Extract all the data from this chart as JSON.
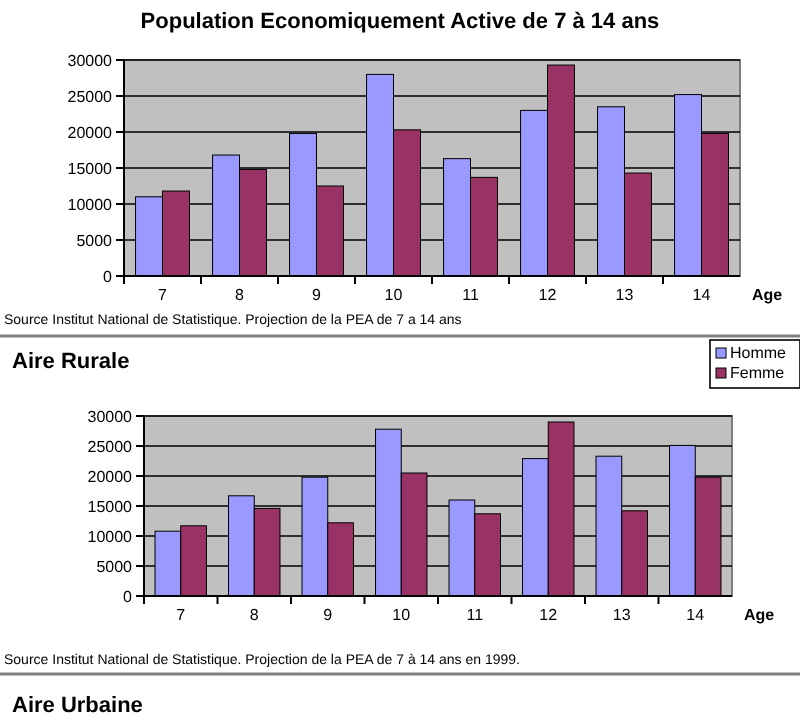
{
  "chart_data": [
    {
      "type": "bar",
      "title": "Population Economiquement Active de 7 à 14 ans",
      "xlabel": "Age",
      "categories": [
        "7",
        "8",
        "9",
        "10",
        "11",
        "12",
        "13",
        "14"
      ],
      "series": [
        {
          "color": "#9999ff",
          "values": [
            11000,
            16800,
            19800,
            28000,
            16300,
            23000,
            23500,
            25200
          ]
        },
        {
          "color": "#993366",
          "values": [
            11800,
            14800,
            12500,
            20300,
            13700,
            29300,
            14300,
            19800
          ]
        }
      ],
      "ylim": [
        0,
        30000
      ],
      "yticks": [
        0,
        5000,
        10000,
        15000,
        20000,
        25000,
        30000
      ],
      "grid": "y",
      "legend": false,
      "annotations": [
        "Source Institut National de Statistique. Projection de la PEA de 7 a 14 ans"
      ]
    },
    {
      "type": "bar",
      "title": "Aire Rurale",
      "xlabel": "Age",
      "categories": [
        "7",
        "8",
        "9",
        "10",
        "11",
        "12",
        "13",
        "14"
      ],
      "series": [
        {
          "name": "Homme",
          "color": "#9999ff",
          "values": [
            10800,
            16700,
            19800,
            27800,
            16000,
            22900,
            23300,
            25100
          ]
        },
        {
          "name": "Femme",
          "color": "#993366",
          "values": [
            11700,
            14600,
            12200,
            20500,
            13700,
            29000,
            14200,
            19800
          ]
        }
      ],
      "ylim": [
        0,
        30000
      ],
      "yticks": [
        0,
        5000,
        10000,
        15000,
        20000,
        25000,
        30000
      ],
      "grid": "y",
      "legend": "top right",
      "annotations": [
        "Source Institut National de Statistique. Projection de la PEA de 7 à 14 ans en 1999.",
        "Aire Urbaine"
      ]
    }
  ]
}
